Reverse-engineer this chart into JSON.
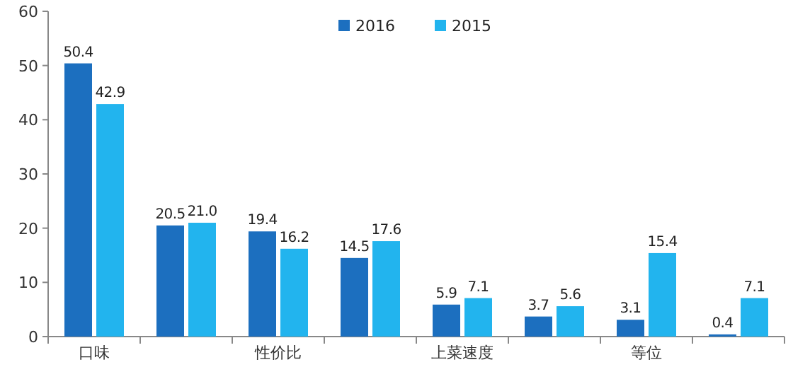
{
  "chart_data": {
    "type": "bar",
    "categories": [
      "口味",
      null,
      "性价比",
      null,
      "上菜速度",
      null,
      "等位",
      null
    ],
    "series": [
      {
        "name": "2016",
        "color": "#1c6fbf",
        "values": [
          50.4,
          20.5,
          19.4,
          14.5,
          5.9,
          3.7,
          3.1,
          0.4
        ]
      },
      {
        "name": "2015",
        "color": "#22b4ee",
        "values": [
          42.9,
          21.0,
          16.2,
          17.6,
          7.1,
          5.6,
          15.4,
          7.1
        ],
        "value_labels": [
          "42.9",
          "21.0",
          "16.2",
          "17.6",
          "7.1",
          "5.6",
          "15.4",
          "7.1"
        ]
      }
    ],
    "ylim": [
      0,
      60
    ],
    "yticks": [
      0,
      10,
      20,
      30,
      40,
      50,
      60
    ],
    "data_labels": true,
    "legend": "top"
  }
}
